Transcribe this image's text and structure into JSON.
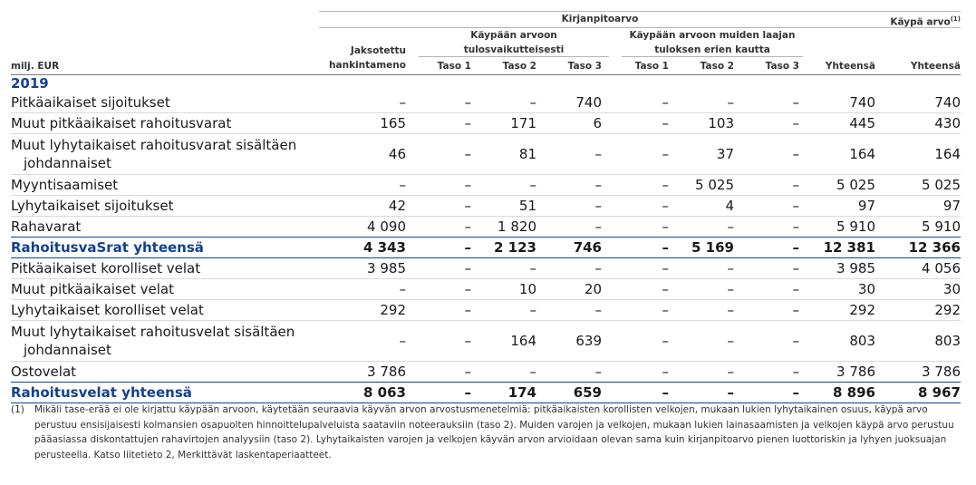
{
  "header": {
    "kirjanpitoarvo": "Kirjanpitoarvo",
    "kaypa_arvo": "Käypä arvo",
    "kaypa_arvo_sup": "(1)",
    "jaksotettu_line1": "Jaksotettu",
    "jaksotettu_line2": "hankintameno",
    "tulos_line1": "Käypään arvoon",
    "tulos_line2": "tulosvaikutteisesti",
    "muu_line1": "Käypään arvoon muiden laajan",
    "muu_line2": "tuloksen erien kautta",
    "unit": "milj. EUR",
    "taso1": "Taso 1",
    "taso2": "Taso 2",
    "taso3": "Taso 3",
    "yhteensa": "Yhteensä"
  },
  "year": "2019",
  "rows": [
    {
      "label": "Pitkäaikaiset sijoitukset",
      "values": [
        "–",
        "–",
        "–",
        "740",
        "–",
        "–",
        "–",
        "740",
        "740"
      ]
    },
    {
      "label": "Muut pitkäaikaiset rahoitusvarat",
      "values": [
        "165",
        "–",
        "171",
        "6",
        "–",
        "103",
        "–",
        "445",
        "430"
      ]
    },
    {
      "label_line1": "Muut lyhytaikaiset rahoitusvarat sisältäen",
      "label_line2": "johdannaiset",
      "values": [
        "46",
        "–",
        "81",
        "–",
        "–",
        "37",
        "–",
        "164",
        "164"
      ]
    },
    {
      "label": "Myyntisaamiset",
      "values": [
        "–",
        "–",
        "–",
        "–",
        "–",
        "5 025",
        "–",
        "5 025",
        "5 025"
      ]
    },
    {
      "label": "Lyhytaikaiset sijoitukset",
      "values": [
        "42",
        "–",
        "51",
        "–",
        "–",
        "4",
        "–",
        "97",
        "97"
      ]
    },
    {
      "label": "Rahavarat",
      "values": [
        "4 090",
        "–",
        "1 820",
        "–",
        "–",
        "–",
        "–",
        "5 910",
        "5 910"
      ]
    },
    {
      "label": "RahoitusvaSrat yhteensä",
      "values": [
        "4 343",
        "–",
        "2 123",
        "746",
        "–",
        "5 169",
        "–",
        "12 381",
        "12 366"
      ]
    },
    {
      "label": "Pitkäaikaiset korolliset velat",
      "values": [
        "3 985",
        "–",
        "–",
        "–",
        "–",
        "–",
        "–",
        "3 985",
        "4 056"
      ]
    },
    {
      "label": "Muut pitkäaikaiset velat",
      "values": [
        "–",
        "–",
        "10",
        "20",
        "–",
        "–",
        "–",
        "30",
        "30"
      ]
    },
    {
      "label": "Lyhytaikaiset korolliset velat",
      "values": [
        "292",
        "–",
        "–",
        "–",
        "–",
        "–",
        "–",
        "292",
        "292"
      ]
    },
    {
      "label_line1": "Muut lyhytaikaiset rahoitusvelat sisältäen",
      "label_line2": "johdannaiset",
      "values": [
        "–",
        "–",
        "164",
        "639",
        "–",
        "–",
        "–",
        "803",
        "803"
      ]
    },
    {
      "label": "Ostovelat",
      "values": [
        "3 786",
        "–",
        "–",
        "–",
        "–",
        "–",
        "–",
        "3 786",
        "3 786"
      ]
    },
    {
      "label": "Rahoitusvelat yhteensä",
      "values": [
        "8 063",
        "–",
        "174",
        "659",
        "–",
        "–",
        "–",
        "8 896",
        "8 967"
      ]
    }
  ],
  "footnote": {
    "marker": "(1)",
    "text": "Mikäli tase-erää ei ole kirjattu käypään arvoon, käytetään seuraavia käyvän arvon arvostusmenetelmiä: pitkäaikaisten korollisten velkojen, mukaan lukien lyhytaikainen osuus, käypä arvo perustuu ensisijaisesti kolmansien osapuolten hinnoittelupalveluista saataviin noteerauksiin (taso 2). Muiden varojen ja velkojen, mukaan lukien lainasaamisten ja velkojen käypä arvo perustuu pääasiassa diskontattujen rahavirtojen analyysiin (taso 2). Lyhytaikaisten varojen ja velkojen käyvän arvon arvioidaan olevan sama kuin kirjanpitoarvo pienen luottoriskin ja lyhyen juoksuajan perusteella. Katso liitetieto 2, Merkittävät laskentaperiaatteet."
  }
}
